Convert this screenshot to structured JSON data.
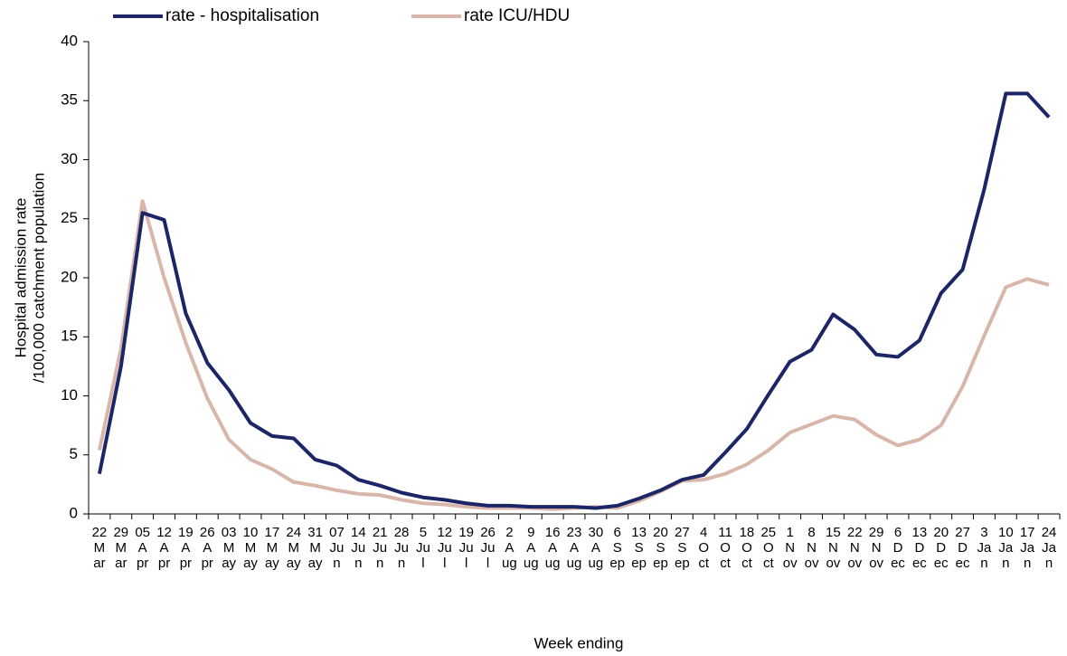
{
  "chart_data": {
    "type": "line",
    "x_label": "Week ending",
    "y_label": [
      "Hospital admission rate",
      "/100,000 catchment population"
    ],
    "categories": [
      "22 Mar",
      "29 Mar",
      "05 Apr",
      "12 Apr",
      "19 Apr",
      "26 Apr",
      "03 May",
      "10 May",
      "17 May",
      "24 May",
      "31 May",
      "07 Jun",
      "14 Jun",
      "21 Jun",
      "28 Jun",
      "5 Jul",
      "12 Jul",
      "19 Jul",
      "26 Jul",
      "2 Aug",
      "9 Aug",
      "16 Aug",
      "23 Aug",
      "30 Aug",
      "6 Sep",
      "13 Sep",
      "20 Sep",
      "27 Sep",
      "4 Oct",
      "11 Oct",
      "18 Oct",
      "25 Oct",
      "1 Nov",
      "8 Nov",
      "15 Nov",
      "22 Nov",
      "29 Nov",
      "6 Dec",
      "13 Dec",
      "20 Dec",
      "27 Dec",
      "3 Jan",
      "10 Jan",
      "17 Jan",
      "24 Jan"
    ],
    "series": [
      {
        "name": "rate - hospitalisation",
        "color": "#1c2566",
        "values": [
          3.4,
          12.5,
          25.5,
          24.9,
          17,
          12.8,
          10.5,
          7.7,
          6.6,
          6.4,
          4.6,
          4.1,
          2.9,
          2.4,
          1.8,
          1.4,
          1.2,
          0.9,
          0.7,
          0.7,
          0.6,
          0.6,
          0.6,
          0.5,
          0.7,
          1.3,
          2.0,
          2.9,
          3.3,
          5.2,
          7.2,
          10.1,
          12.9,
          13.9,
          16.9,
          15.6,
          13.5,
          13.3,
          14.7,
          18.7,
          20.7,
          27.5,
          35.6,
          35.6,
          33.6
        ]
      },
      {
        "name": "rate ICU/HDU",
        "color": "#d8b7aa",
        "values": [
          5.4,
          14,
          26.5,
          20,
          14.5,
          9.8,
          6.3,
          4.6,
          3.8,
          2.7,
          2.4,
          2.0,
          1.7,
          1.6,
          1.2,
          0.9,
          0.8,
          0.6,
          0.5,
          0.5,
          0.5,
          0.4,
          0.5,
          0.6,
          0.5,
          1.1,
          1.9,
          2.8,
          2.9,
          3.4,
          4.2,
          5.4,
          6.9,
          7.6,
          8.3,
          8.0,
          6.7,
          5.8,
          6.3,
          7.5,
          10.8,
          15.1,
          19.2,
          19.9,
          19.4
        ]
      }
    ],
    "ylim": [
      0,
      40
    ],
    "yticks": [
      0,
      5,
      10,
      15,
      20,
      25,
      30,
      35,
      40
    ],
    "grid": false,
    "legend": "top-left"
  }
}
